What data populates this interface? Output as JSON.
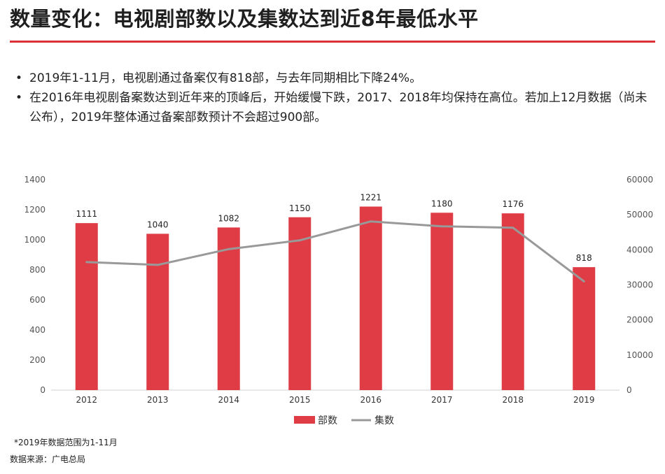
{
  "header": {
    "title": "数量变化：电视剧部数以及集数达到近8年最低水平"
  },
  "bullets": [
    "2019年1-11月，电视剧通过备案仅有818部，与去年同期相比下降24%。",
    "在2016年电视剧备案数达到近年来的顶峰后，开始缓慢下跌，2017、2018年均保持在高位。若加上12月数据（尚未公布），2019年整体通过备案部数预计不会超过900部。"
  ],
  "bullet_symbol": "•",
  "chart_data": {
    "type": "bar",
    "categories": [
      "2012",
      "2013",
      "2014",
      "2015",
      "2016",
      "2017",
      "2018",
      "2019"
    ],
    "series": [
      {
        "name": "部数",
        "type": "bar",
        "axis": "left",
        "color": "#e03c45",
        "values": [
          1111,
          1040,
          1082,
          1150,
          1221,
          1180,
          1176,
          818
        ],
        "data_labels": true
      },
      {
        "name": "集数",
        "type": "line",
        "axis": "right",
        "color": "#999999",
        "values": [
          36500,
          35700,
          40200,
          42700,
          48100,
          46700,
          46300,
          31000
        ]
      }
    ],
    "y_left": {
      "min": 0,
      "max": 1400,
      "ticks": [
        0,
        200,
        400,
        600,
        800,
        1000,
        1200,
        1400
      ]
    },
    "y_right": {
      "min": 0,
      "max": 60000,
      "ticks": [
        0,
        10000,
        20000,
        30000,
        40000,
        50000,
        60000
      ]
    },
    "legend_position": "bottom",
    "grid": false
  },
  "footer": {
    "note": "*2019年数据范围为1-11月",
    "source": "数据来源：广电总局"
  }
}
